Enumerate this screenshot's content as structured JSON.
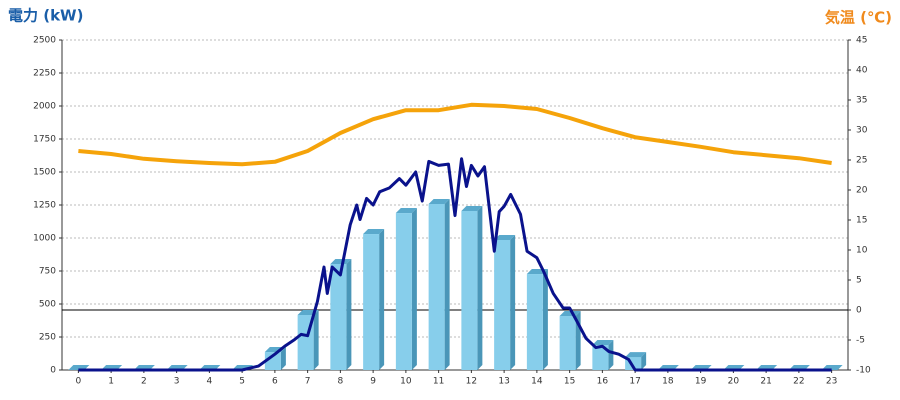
{
  "chart_data": {
    "type": "bar",
    "title": "電力 (kW)",
    "title_color": "#1a5ea8",
    "y2_title": "気温 (℃)",
    "y2_title_color": "#f08a1c",
    "categories": [
      "0",
      "1",
      "2",
      "3",
      "4",
      "5",
      "6",
      "7",
      "8",
      "9",
      "10",
      "11",
      "12",
      "13",
      "14",
      "15",
      "16",
      "17",
      "18",
      "19",
      "20",
      "21",
      "22",
      "23"
    ],
    "ylim": [
      0,
      2500
    ],
    "yticks": [
      0,
      250,
      500,
      750,
      1000,
      1250,
      1500,
      1750,
      2000,
      2250,
      2500
    ],
    "y2lim": [
      -10,
      45
    ],
    "y2ticks": [
      -10,
      -5,
      0,
      5,
      10,
      15,
      20,
      25,
      30,
      35,
      40,
      45
    ],
    "grid": true,
    "series": [
      {
        "type": "bar",
        "color": "#87ceeb",
        "values": [
          0,
          0,
          0,
          0,
          0,
          0,
          136,
          417,
          803,
          1030,
          1189,
          1258,
          1205,
          985,
          727,
          409,
          189,
          98,
          0,
          0,
          0,
          0,
          0,
          0
        ]
      },
      {
        "type": "line",
        "color": "#0a128c",
        "x": [
          0,
          1,
          2,
          3,
          4,
          5,
          5.5,
          6,
          6.3,
          6.6,
          6.8,
          7,
          7.3,
          7.5,
          7.6,
          7.75,
          8,
          8.3,
          8.5,
          8.6,
          8.8,
          9,
          9.2,
          9.5,
          9.8,
          10,
          10.3,
          10.5,
          10.7,
          11,
          11.3,
          11.5,
          11.7,
          11.85,
          12,
          12.2,
          12.4,
          12.7,
          12.85,
          13,
          13.2,
          13.5,
          13.7,
          14,
          14.2,
          14.5,
          14.8,
          15,
          15.2,
          15.5,
          15.8,
          16,
          16.2,
          16.5,
          16.8,
          17,
          18,
          19,
          20,
          21,
          22,
          23
        ],
        "values": [
          0,
          0,
          0,
          0,
          0,
          0,
          30,
          120,
          180,
          230,
          270,
          260,
          520,
          780,
          580,
          780,
          720,
          1100,
          1250,
          1140,
          1300,
          1250,
          1350,
          1380,
          1450,
          1400,
          1500,
          1280,
          1580,
          1550,
          1560,
          1170,
          1600,
          1390,
          1550,
          1470,
          1540,
          900,
          1200,
          1240,
          1330,
          1180,
          900,
          850,
          750,
          580,
          470,
          470,
          380,
          240,
          170,
          180,
          140,
          120,
          80,
          0,
          0,
          0,
          0,
          0,
          0,
          0
        ]
      },
      {
        "type": "line",
        "axis": "y2",
        "color": "#f5a30a",
        "values": [
          26.5,
          26,
          25.2,
          24.8,
          24.5,
          24.3,
          24.7,
          26.5,
          29.5,
          31.8,
          33.3,
          33.3,
          34.2,
          34,
          33.5,
          32,
          30.3,
          28.8,
          28,
          27.2,
          26.3,
          25.8,
          25.3,
          24.5
        ]
      }
    ]
  }
}
